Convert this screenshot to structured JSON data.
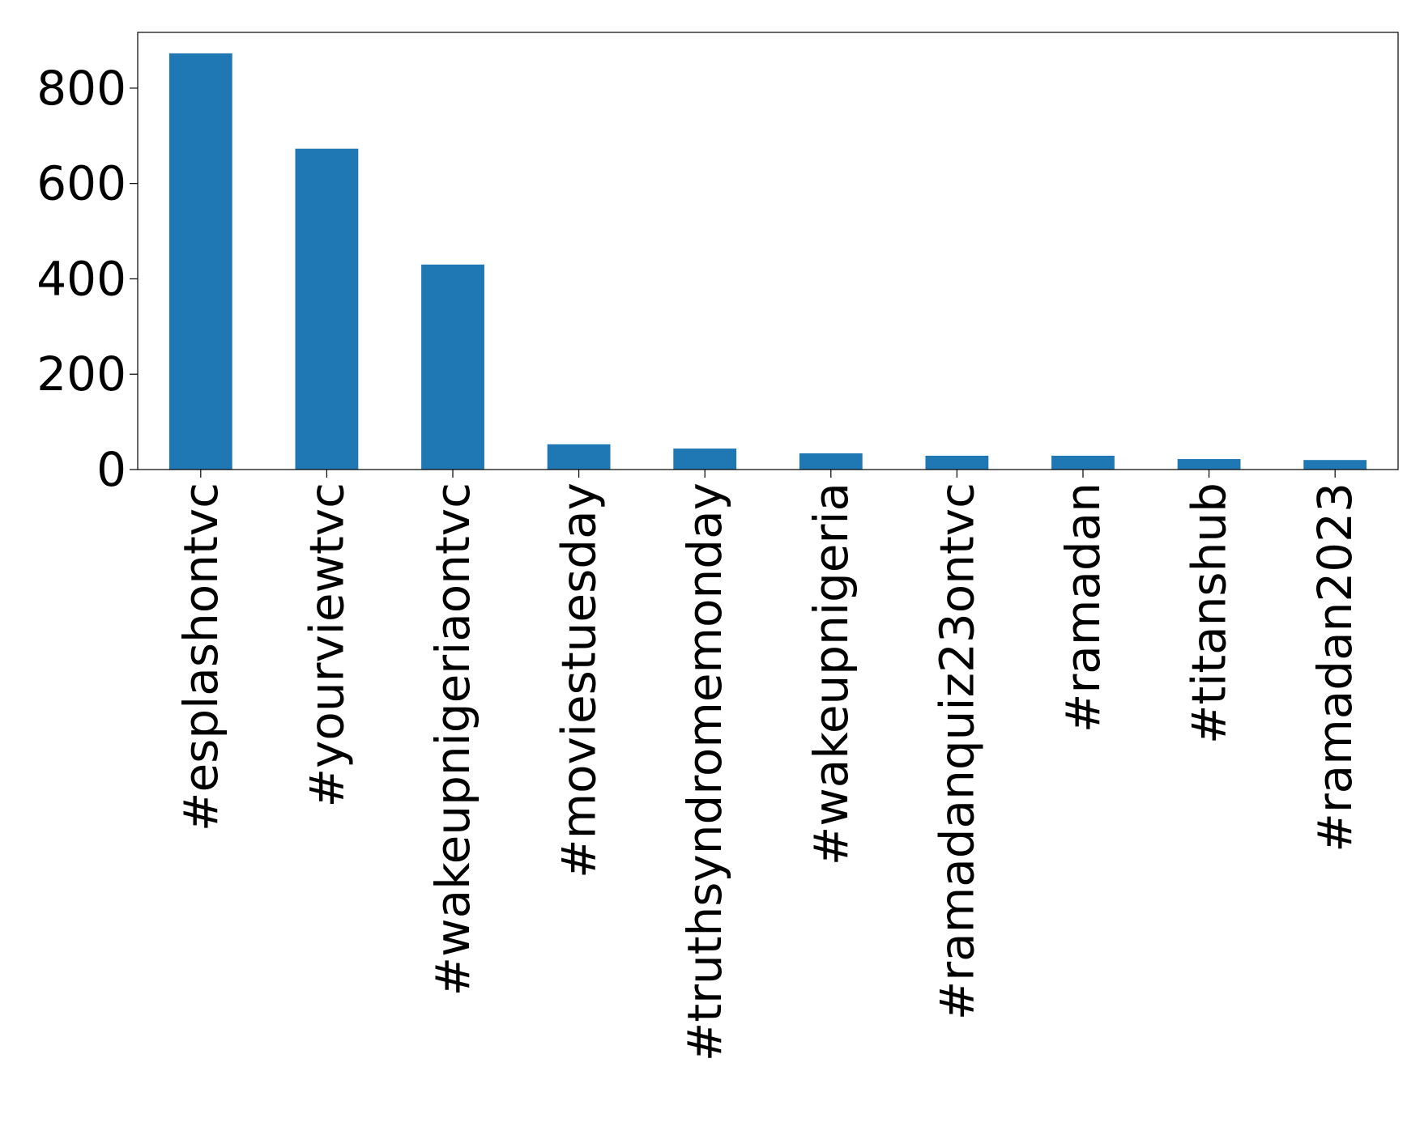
{
  "chart_data": {
    "type": "bar",
    "title": "",
    "xlabel": "",
    "ylabel": "",
    "categories": [
      "#esplashontvc",
      "#yourviewtvc",
      "#wakeupnigeriaontvc",
      "#moviestuesday",
      "#truthsyndromemonday",
      "#wakeupnigeria",
      "#ramadanquiz23ontvc",
      "#ramadan",
      "#titanshub",
      "#ramadan2023"
    ],
    "values": [
      873,
      673,
      430,
      53,
      44,
      34,
      29,
      29,
      22,
      20
    ],
    "ylim": [
      0,
      917
    ],
    "yticks": [
      0,
      200,
      400,
      600,
      800
    ],
    "bar_color": "#1f77b4",
    "grid": false,
    "legend": "none"
  }
}
